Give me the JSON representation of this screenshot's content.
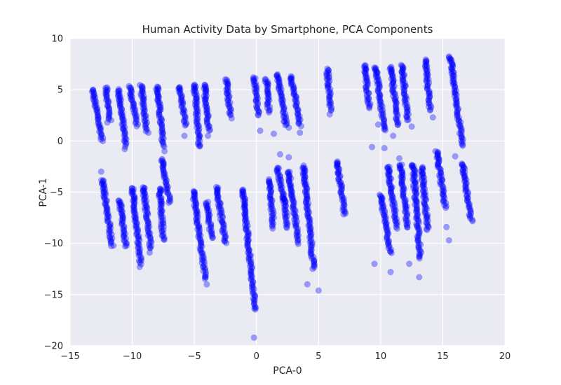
{
  "chart_data": {
    "type": "scatter",
    "title": "Human Activity Data by Smartphone, PCA Components",
    "xlabel": "PCA-0",
    "ylabel": "PCA-1",
    "xlim": [
      -15,
      20
    ],
    "ylim": [
      -20,
      10
    ],
    "xticks": [
      -15,
      -10,
      -5,
      0,
      5,
      10,
      15,
      20
    ],
    "yticks": [
      -20,
      -15,
      -10,
      -5,
      0,
      5,
      10
    ],
    "xtick_labels": [
      "−15",
      "−10",
      "−5",
      "0",
      "5",
      "10",
      "15",
      "20"
    ],
    "ytick_labels": [
      "−20",
      "−15",
      "−10",
      "−5",
      "0",
      "5",
      "10"
    ],
    "grid": true,
    "background_color": "#eaeaf2",
    "point_color": "#0000ff",
    "point_alpha": 0.35,
    "series": [
      {
        "segments": [
          {
            "x": [
              -13.2,
              -12.4
            ],
            "y": [
              5.0,
              0.0
            ]
          },
          {
            "x": [
              -12.1,
              -11.8
            ],
            "y": [
              5.2,
              2.0
            ]
          },
          {
            "x": [
              -11.1,
              -10.5
            ],
            "y": [
              5.0,
              -0.5
            ]
          },
          {
            "x": [
              -10.2,
              -9.6
            ],
            "y": [
              5.3,
              1.5
            ]
          },
          {
            "x": [
              -9.3,
              -8.8
            ],
            "y": [
              5.4,
              1.0
            ]
          },
          {
            "x": [
              -8.0,
              -7.5
            ],
            "y": [
              5.3,
              -0.5
            ]
          },
          {
            "x": [
              -6.2,
              -5.7
            ],
            "y": [
              5.3,
              1.5
            ]
          },
          {
            "x": [
              -5.0,
              -4.6
            ],
            "y": [
              5.5,
              -0.5
            ]
          },
          {
            "x": [
              -4.2,
              -3.8
            ],
            "y": [
              5.5,
              1.0
            ]
          },
          {
            "x": [
              -2.4,
              -2.1
            ],
            "y": [
              6.0,
              2.5
            ]
          },
          {
            "x": [
              -0.2,
              0.2
            ],
            "y": [
              6.2,
              2.5
            ]
          },
          {
            "x": [
              0.8,
              1.0
            ],
            "y": [
              6.0,
              2.8
            ]
          },
          {
            "x": [
              1.7,
              2.4
            ],
            "y": [
              6.5,
              1.5
            ]
          },
          {
            "x": [
              2.8,
              3.5
            ],
            "y": [
              6.3,
              1.5
            ]
          },
          {
            "x": [
              5.7,
              6.0
            ],
            "y": [
              7.0,
              3.0
            ]
          },
          {
            "x": [
              8.7,
              9.1
            ],
            "y": [
              7.4,
              3.2
            ]
          },
          {
            "x": [
              9.6,
              10.3
            ],
            "y": [
              7.2,
              1.0
            ]
          },
          {
            "x": [
              10.8,
              11.4
            ],
            "y": [
              7.2,
              1.5
            ]
          },
          {
            "x": [
              11.7,
              12.2
            ],
            "y": [
              7.4,
              2.0
            ]
          },
          {
            "x": [
              13.6,
              14.0
            ],
            "y": [
              7.9,
              3.0
            ]
          },
          {
            "x": [
              15.6,
              16.6
            ],
            "y": [
              8.2,
              -0.5
            ]
          },
          {
            "x": [
              -12.4,
              -11.6
            ],
            "y": [
              -3.8,
              -10.3
            ]
          },
          {
            "x": [
              -11.0,
              -10.5
            ],
            "y": [
              -5.8,
              -10.3
            ]
          },
          {
            "x": [
              -10.0,
              -9.3
            ],
            "y": [
              -4.6,
              -12.0
            ]
          },
          {
            "x": [
              -9.1,
              -8.5
            ],
            "y": [
              -4.5,
              -10.5
            ]
          },
          {
            "x": [
              -7.8,
              -7.5
            ],
            "y": [
              -4.6,
              -9.7
            ]
          },
          {
            "x": [
              -7.6,
              -7.0
            ],
            "y": [
              -1.8,
              -6.0
            ]
          },
          {
            "x": [
              -5.1,
              -4.1
            ],
            "y": [
              -4.9,
              -13.5
            ]
          },
          {
            "x": [
              -4.0,
              -3.6
            ],
            "y": [
              -6.0,
              -9.5
            ]
          },
          {
            "x": [
              -3.2,
              -2.5
            ],
            "y": [
              -4.5,
              -10.0
            ]
          },
          {
            "x": [
              -1.1,
              -0.1
            ],
            "y": [
              -4.8,
              -16.5
            ]
          },
          {
            "x": [
              1.0,
              1.4
            ],
            "y": [
              -3.8,
              -8.5
            ]
          },
          {
            "x": [
              1.7,
              2.2
            ],
            "y": [
              -2.6,
              -5.8
            ]
          },
          {
            "x": [
              2.2,
              2.5
            ],
            "y": [
              -5.5,
              -8.5
            ]
          },
          {
            "x": [
              2.6,
              3.4
            ],
            "y": [
              -3.0,
              -10.0
            ]
          },
          {
            "x": [
              3.8,
              4.6
            ],
            "y": [
              -2.6,
              -12.5
            ]
          },
          {
            "x": [
              6.5,
              7.1
            ],
            "y": [
              -2.0,
              -7.2
            ]
          },
          {
            "x": [
              10.0,
              10.8
            ],
            "y": [
              -5.3,
              -11.0
            ]
          },
          {
            "x": [
              10.6,
              11.3
            ],
            "y": [
              -2.5,
              -8.5
            ]
          },
          {
            "x": [
              11.6,
              12.2
            ],
            "y": [
              -2.3,
              -8.5
            ]
          },
          {
            "x": [
              12.6,
              13.2
            ],
            "y": [
              -2.3,
              -11.5
            ]
          },
          {
            "x": [
              13.3,
              13.8
            ],
            "y": [
              -2.6,
              -8.7
            ]
          },
          {
            "x": [
              14.5,
              15.2
            ],
            "y": [
              -1.0,
              -6.5
            ]
          },
          {
            "x": [
              16.6,
              17.3
            ],
            "y": [
              -2.2,
              -7.8
            ]
          }
        ],
        "outliers": {
          "x": [
            -12.0,
            -10.6,
            -8.7,
            -7.4,
            -5.8,
            -4.6,
            -3.9,
            -2.0,
            0.3,
            1.4,
            2.2,
            2.6,
            3.5,
            5.9,
            9.3,
            9.8,
            11.0,
            12.5,
            14.2,
            16.0,
            -12.5,
            -9.4,
            -8.6,
            -4.0,
            -0.2,
            1.9,
            2.6,
            3.8,
            4.1,
            5.0,
            9.5,
            10.3,
            10.8,
            11.5,
            12.3,
            13.1,
            15.3,
            15.5
          ],
          "y": [
            1.8,
            -0.8,
            0.8,
            -1.0,
            0.5,
            -0.5,
            0.5,
            2.2,
            1.0,
            0.7,
            1.9,
            1.3,
            0.8,
            2.6,
            -0.6,
            1.6,
            0.5,
            1.4,
            2.3,
            -1.5,
            -3.0,
            -12.3,
            -10.9,
            -14.0,
            -19.2,
            -1.3,
            -1.6,
            -2.4,
            -14.0,
            -14.6,
            -12.0,
            -0.7,
            -12.8,
            -1.7,
            -12.0,
            -13.3,
            -8.4,
            -9.7
          ]
        }
      }
    ]
  }
}
